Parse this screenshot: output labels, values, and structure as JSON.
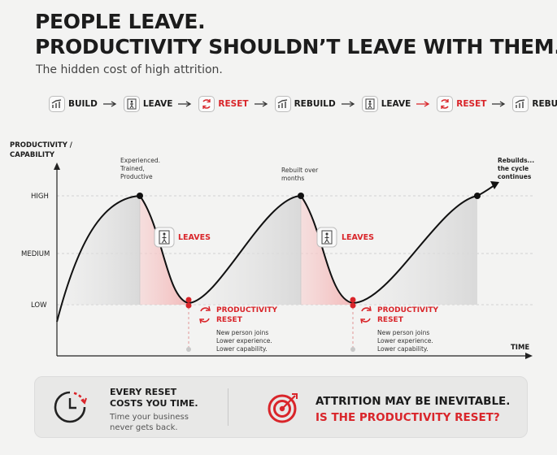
{
  "header": {
    "title_line1": "PEOPLE LEAVE.",
    "title_line2": "PRODUCTIVITY SHOULDN’T LEAVE WITH THEM.",
    "subtitle": "The hidden cost of high attrition."
  },
  "flow": [
    {
      "label": "BUILD",
      "icon": "growth-chart-icon",
      "accent": false
    },
    {
      "label": "LEAVE",
      "icon": "exit-door-icon",
      "accent": false
    },
    {
      "label": "RESET",
      "icon": "reset-arrows-icon",
      "accent": true
    },
    {
      "label": "REBUILD",
      "icon": "growth-chart-icon",
      "accent": false
    },
    {
      "label": "LEAVE",
      "icon": "exit-door-icon",
      "accent": false
    },
    {
      "label": "RESET",
      "icon": "reset-arrows-icon",
      "accent": true
    },
    {
      "label": "REBUILD...",
      "icon": "growth-chart-icon",
      "accent": false
    }
  ],
  "chart": {
    "y_axis_label_line1": "PRODUCTIVITY /",
    "y_axis_label_line2": "CAPABILITY",
    "x_axis_label": "TIME",
    "levels": [
      "HIGH",
      "MEDIUM",
      "LOW"
    ],
    "peak1_note": [
      "Experienced.",
      "Trained,",
      "Productive"
    ],
    "peak2_note": [
      "Rebuilt over",
      "months"
    ],
    "end_note": [
      "Rebuilds...",
      "the cycle",
      "continues"
    ],
    "leaves_label": "LEAVES",
    "reset_label_line1": "PRODUCTIVITY",
    "reset_label_line2": "RESET",
    "reset_note": [
      "New person joins",
      "Lower experience.",
      "Lower capability."
    ]
  },
  "bottom": {
    "left_heading_line1": "EVERY RESET",
    "left_heading_line2": "COSTS YOU TIME.",
    "left_sub_line1": "Time your business",
    "left_sub_line2": "never gets back.",
    "right_line1": "ATTRITION MAY BE INEVITABLE.",
    "right_line2": "IS THE PRODUCTIVITY RESET?"
  },
  "colors": {
    "accent": "#d9252a",
    "text": "#1c1c1c",
    "background": "#f3f3f2"
  }
}
